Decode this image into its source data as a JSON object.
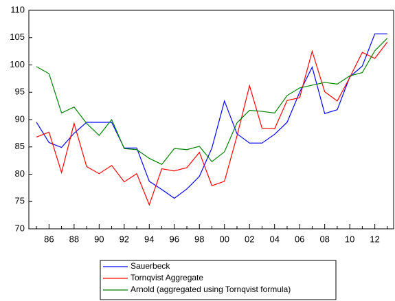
{
  "chart_data": {
    "type": "line",
    "categories": [
      null,
      "86",
      null,
      "88",
      null,
      "90",
      null,
      "92",
      null,
      "94",
      null,
      "96",
      null,
      "98",
      null,
      "00",
      null,
      "02",
      null,
      "04",
      null,
      "06",
      null,
      "08",
      null,
      "10",
      null,
      "12",
      null
    ],
    "series": [
      {
        "name": "Sauerbeck",
        "color": "#0000ff",
        "values": [
          89.5,
          85.8,
          84.9,
          87.5,
          89.5,
          89.5,
          89.5,
          84.8,
          84.8,
          78.7,
          77.2,
          75.6,
          77.3,
          79.6,
          84.8,
          93.4,
          87.4,
          85.7,
          85.7,
          87.3,
          89.5,
          95.0,
          99.6,
          91.1,
          91.8,
          97.8,
          99.8,
          105.7,
          105.7
        ]
      },
      {
        "name": "Tornqvist Aggregate",
        "color": "#ff0000",
        "values": [
          86.8,
          87.7,
          80.3,
          89.3,
          81.4,
          80.1,
          81.6,
          78.6,
          80.1,
          74.4,
          81.0,
          80.6,
          81.2,
          84.0,
          77.9,
          78.7,
          87.0,
          96.2,
          88.4,
          88.3,
          93.5,
          94.0,
          102.5,
          95.1,
          93.4,
          97.7,
          102.3,
          101.2,
          104.2
        ]
      },
      {
        "name": "Arnold (aggregated using Tornqvist formula)",
        "color": "#008000",
        "values": [
          99.7,
          98.4,
          91.2,
          92.3,
          89.3,
          87.1,
          90.0,
          84.7,
          84.5,
          82.9,
          81.8,
          84.7,
          84.5,
          85.1,
          82.3,
          84.1,
          89.4,
          91.7,
          91.5,
          91.2,
          94.4,
          95.8,
          96.3,
          96.8,
          96.5,
          98.0,
          98.6,
          102.6,
          104.9
        ]
      }
    ],
    "ylim": [
      70,
      110
    ],
    "yticks": [
      70,
      75,
      80,
      85,
      90,
      95,
      100,
      105,
      110
    ],
    "grid": false,
    "legend": "bottom"
  }
}
